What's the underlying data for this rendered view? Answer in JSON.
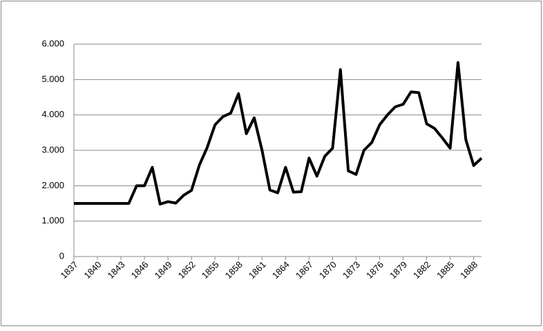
{
  "chart_data": {
    "type": "line",
    "x": [
      1837,
      1838,
      1839,
      1840,
      1841,
      1842,
      1843,
      1844,
      1845,
      1846,
      1847,
      1848,
      1849,
      1850,
      1851,
      1852,
      1853,
      1854,
      1855,
      1856,
      1857,
      1858,
      1859,
      1860,
      1861,
      1862,
      1863,
      1864,
      1865,
      1866,
      1867,
      1868,
      1869,
      1870,
      1871,
      1872,
      1873,
      1874,
      1875,
      1876,
      1877,
      1878,
      1879,
      1880,
      1881,
      1882,
      1883,
      1884,
      1885,
      1886,
      1887,
      1888,
      1889
    ],
    "series": [
      {
        "color": "#000000",
        "values": [
          1500,
          1500,
          1500,
          1500,
          1500,
          1500,
          1500,
          1500,
          2000,
          2000,
          2520,
          1480,
          1550,
          1510,
          1730,
          1870,
          2580,
          3080,
          3720,
          3950,
          4050,
          4600,
          3470,
          3920,
          3000,
          1880,
          1800,
          2520,
          1820,
          1830,
          2780,
          2270,
          2830,
          3060,
          5280,
          2420,
          2320,
          3000,
          3220,
          3720,
          4000,
          4230,
          4300,
          4650,
          4630,
          3750,
          3620,
          3350,
          3060,
          5480,
          3300,
          2570,
          2780
        ]
      }
    ],
    "xlim": [
      1837,
      1889
    ],
    "xticks": [
      1837,
      1840,
      1843,
      1846,
      1849,
      1852,
      1855,
      1858,
      1861,
      1864,
      1867,
      1870,
      1873,
      1876,
      1879,
      1882,
      1885,
      1888
    ],
    "ylim": [
      0,
      6000
    ],
    "yticks": [
      0,
      {
        "value": 1000,
        "label": "1.000"
      },
      {
        "value": 2000,
        "label": "2.000"
      },
      {
        "value": 3000,
        "label": "3.000"
      },
      {
        "value": 4000,
        "label": "4.000"
      },
      {
        "value": 5000,
        "label": "5.000"
      },
      {
        "value": 6000,
        "label": "6.000"
      }
    ],
    "grid": true
  }
}
